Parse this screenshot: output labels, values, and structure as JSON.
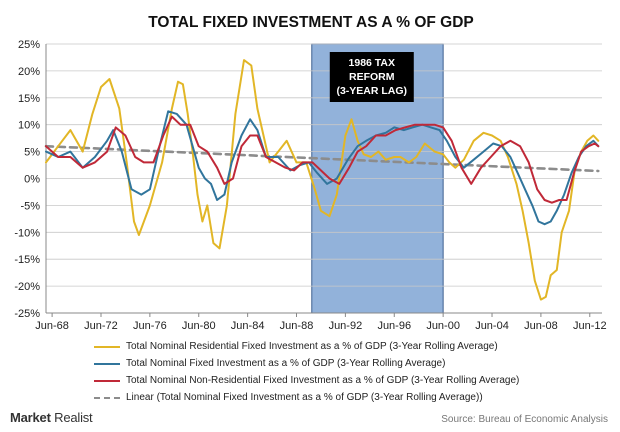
{
  "chart_data": {
    "type": "line",
    "title": "TOTAL FIXED INVESTMENT AS A % OF GDP",
    "ylim": [
      -25,
      25
    ],
    "y_ticks": [
      -25,
      -20,
      -15,
      -10,
      -5,
      0,
      5,
      10,
      15,
      20,
      25
    ],
    "y_tick_labels": [
      "-25%",
      "-20%",
      "-15%",
      "-10%",
      "-5%",
      "0%",
      "5%",
      "10%",
      "15%",
      "20%",
      "25%"
    ],
    "xlim": [
      1968.0,
      2013.5
    ],
    "x_ticks": [
      1968.5,
      1972.5,
      1976.5,
      1980.5,
      1984.5,
      1988.5,
      1992.5,
      1996.5,
      2000.5,
      2004.5,
      2008.5,
      2012.5
    ],
    "x_tick_labels": [
      "Jun-68",
      "Jun-72",
      "Jun-76",
      "Jun-80",
      "Jun-84",
      "Jun-88",
      "Jun-92",
      "Jun-96",
      "Jun-00",
      "Jun-04",
      "Jun-08",
      "Jun-12"
    ],
    "grid": true,
    "shaded_region": {
      "x_start": 1989.75,
      "x_end": 2000.5,
      "color": "#7fa5d3",
      "label_lines": [
        "1986 TAX",
        "REFORM",
        "(3-YEAR LAG)"
      ]
    },
    "series": [
      {
        "name": "Total Nominal Residential Fixed Investment as a % of GDP (3-Year Rolling Average)",
        "color": "#e2b626",
        "style": "solid",
        "x": [
          1968.0,
          1969.0,
          1970.0,
          1971.0,
          1971.8,
          1972.5,
          1973.2,
          1974.0,
          1974.6,
          1975.2,
          1975.6,
          1976.5,
          1977.5,
          1978.3,
          1978.8,
          1979.2,
          1979.6,
          1980.0,
          1980.4,
          1980.8,
          1981.2,
          1981.7,
          1982.2,
          1982.8,
          1983.5,
          1984.2,
          1984.8,
          1985.3,
          1985.8,
          1986.3,
          1987.0,
          1987.7,
          1988.5,
          1989.3,
          1990.0,
          1990.5,
          1991.2,
          1991.8,
          1992.5,
          1993.0,
          1993.5,
          1994.0,
          1994.6,
          1995.2,
          1995.8,
          1996.5,
          1997.0,
          1997.7,
          1998.3,
          1999.0,
          1999.8,
          2000.5,
          2001.0,
          2001.5,
          2002.2,
          2003.0,
          2003.8,
          2004.5,
          2005.2,
          2005.8,
          2006.5,
          2007.0,
          2007.5,
          2008.0,
          2008.5,
          2008.9,
          2009.3,
          2009.8,
          2010.2,
          2010.8,
          2011.3,
          2011.8,
          2012.3,
          2012.8,
          2013.2
        ],
        "values": [
          3,
          6,
          9,
          5,
          12,
          17,
          18.5,
          13,
          3,
          -8,
          -10.5,
          -5,
          3,
          13,
          18,
          17.5,
          12,
          5,
          -3,
          -8,
          -5,
          -12,
          -13,
          -5,
          12,
          22,
          21,
          13,
          8,
          3,
          5,
          7,
          3,
          3,
          -2,
          -6,
          -7,
          -3,
          8,
          11,
          7,
          4.5,
          4,
          5,
          3.5,
          4,
          4,
          3,
          4,
          6.5,
          5,
          4.5,
          3,
          2,
          3.5,
          7,
          8.5,
          8,
          7,
          4,
          -1,
          -6,
          -12,
          -19,
          -22.5,
          -22,
          -18,
          -17,
          -10,
          -6,
          2,
          5,
          7,
          8,
          7
        ]
      },
      {
        "name": "Total Nominal Fixed Investment as a % of GDP (3-Year Rolling Average)",
        "color": "#31759c",
        "style": "solid",
        "x": [
          1968.0,
          1969.0,
          1970.0,
          1971.0,
          1972.0,
          1973.0,
          1973.5,
          1974.2,
          1975.0,
          1975.8,
          1976.5,
          1977.3,
          1978.0,
          1978.7,
          1979.5,
          1980.0,
          1980.5,
          1981.0,
          1981.5,
          1982.0,
          1982.6,
          1983.2,
          1984.0,
          1984.7,
          1985.3,
          1986.0,
          1987.0,
          1988.0,
          1988.8,
          1989.5,
          1990.2,
          1991.0,
          1991.8,
          1992.7,
          1993.5,
          1994.2,
          1995.0,
          1995.8,
          1996.5,
          1997.3,
          1998.0,
          1998.8,
          1999.5,
          2000.2,
          2000.8,
          2001.5,
          2002.2,
          2003.0,
          2003.8,
          2004.6,
          2005.3,
          2006.0,
          2006.6,
          2007.2,
          2007.8,
          2008.3,
          2008.8,
          2009.3,
          2009.8,
          2010.4,
          2011.0,
          2011.6,
          2012.2,
          2012.8,
          2013.2
        ],
        "values": [
          5,
          4,
          5,
          2,
          4,
          7,
          9,
          5,
          -2,
          -3,
          -2,
          6,
          12.5,
          12,
          10,
          6,
          2,
          0,
          -1,
          -4,
          -3,
          3,
          8,
          11,
          9,
          4,
          4,
          1.5,
          2.5,
          3,
          1,
          -1,
          0,
          3.5,
          6,
          7,
          8,
          8.5,
          9.5,
          9,
          9.5,
          10,
          9.5,
          9,
          7,
          4,
          2,
          3.5,
          5,
          6.5,
          6,
          4,
          1,
          -2,
          -5,
          -8,
          -8.5,
          -8,
          -6,
          -3,
          1,
          4,
          6,
          7,
          6
        ]
      },
      {
        "name": "Total Nominal Non-Residential Fixed Investment as a % of GDP (3-Year Rolling Average)",
        "color": "#c02938",
        "style": "solid",
        "x": [
          1968.0,
          1969.0,
          1970.0,
          1971.0,
          1972.0,
          1973.0,
          1973.7,
          1974.5,
          1975.3,
          1976.0,
          1976.8,
          1977.6,
          1978.3,
          1979.0,
          1979.8,
          1980.5,
          1981.2,
          1982.0,
          1982.6,
          1983.3,
          1984.0,
          1984.7,
          1985.3,
          1986.0,
          1986.8,
          1987.6,
          1988.3,
          1989.0,
          1989.8,
          1990.5,
          1991.2,
          1992.0,
          1992.8,
          1993.5,
          1994.2,
          1995.0,
          1995.8,
          1996.6,
          1997.4,
          1998.2,
          1999.0,
          1999.8,
          2000.5,
          2001.2,
          2002.0,
          2002.8,
          2003.6,
          2004.4,
          2005.2,
          2006.0,
          2006.8,
          2007.5,
          2008.2,
          2008.8,
          2009.4,
          2010.0,
          2010.6,
          2011.2,
          2011.8,
          2012.4,
          2012.9,
          2013.2
        ],
        "values": [
          6,
          4,
          4,
          2,
          3,
          5,
          9.5,
          8,
          4,
          3,
          3,
          8,
          11.5,
          10,
          10,
          6,
          5,
          2,
          -1,
          0,
          6,
          8,
          8,
          4,
          3,
          2,
          1.5,
          3,
          3,
          1.5,
          0,
          -1,
          2,
          5,
          6,
          8,
          8,
          9,
          9.5,
          10,
          10,
          10,
          9.5,
          7,
          2,
          -1,
          2,
          4,
          6,
          7,
          6,
          3,
          -2,
          -4,
          -4.5,
          -4,
          -4,
          1,
          5,
          6,
          6.5,
          6
        ]
      },
      {
        "name": "Linear (Total Nominal Fixed Investment as a % of GDP (3-Year Rolling Average))",
        "color": "#8c8c8c",
        "style": "dashed",
        "x": [
          1968.0,
          2013.2
        ],
        "values": [
          6.0,
          1.4
        ]
      }
    ]
  },
  "footer": {
    "brand_bold": "Market",
    "brand_rest": " Realist",
    "source": "Source: Bureau of Economic Analysis"
  }
}
